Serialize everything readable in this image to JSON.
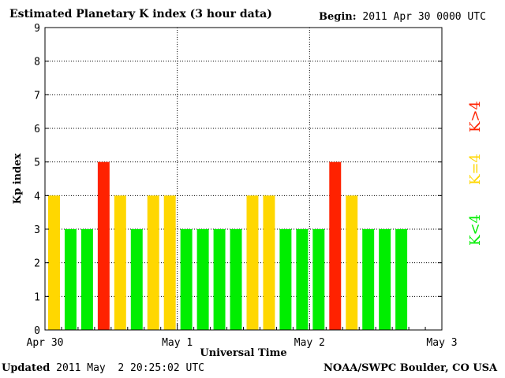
{
  "header": {
    "title": "Estimated Planetary K index (3 hour data)",
    "begin_label": "Begin:",
    "begin_value": "2011 Apr 30 0000 UTC"
  },
  "footer": {
    "updated_label": "Updated",
    "updated_value": "2011 May  2 20:25:02 UTC",
    "source": "NOAA/SWPC Boulder, CO USA"
  },
  "colors": {
    "low": "#00ee00",
    "mid": "#ffd700",
    "high": "#ff2200",
    "grid": "#000000",
    "background": "#ffffff"
  },
  "chart_data": {
    "type": "bar",
    "title": "Estimated Planetary K index (3 hour data)",
    "xlabel": "Universal Time",
    "ylabel": "Kp index",
    "ylim": [
      0,
      9
    ],
    "yticks": [
      "0",
      "1",
      "2",
      "3",
      "4",
      "5",
      "6",
      "7",
      "8",
      "9"
    ],
    "xticks": [
      "Apr 30",
      "May 1",
      "May 2",
      "May 3"
    ],
    "bins_per_day": 8,
    "days": 3,
    "values": [
      4,
      3,
      3,
      5,
      4,
      3,
      4,
      4,
      3,
      3,
      3,
      3,
      4,
      4,
      3,
      3,
      3,
      5,
      4,
      3,
      3,
      3
    ],
    "legend": [
      {
        "label": "K<4",
        "color": "#00ee00"
      },
      {
        "label": "K=4",
        "color": "#ffd700"
      },
      {
        "label": "K>4",
        "color": "#ff2200"
      }
    ],
    "legend_position": "right"
  }
}
